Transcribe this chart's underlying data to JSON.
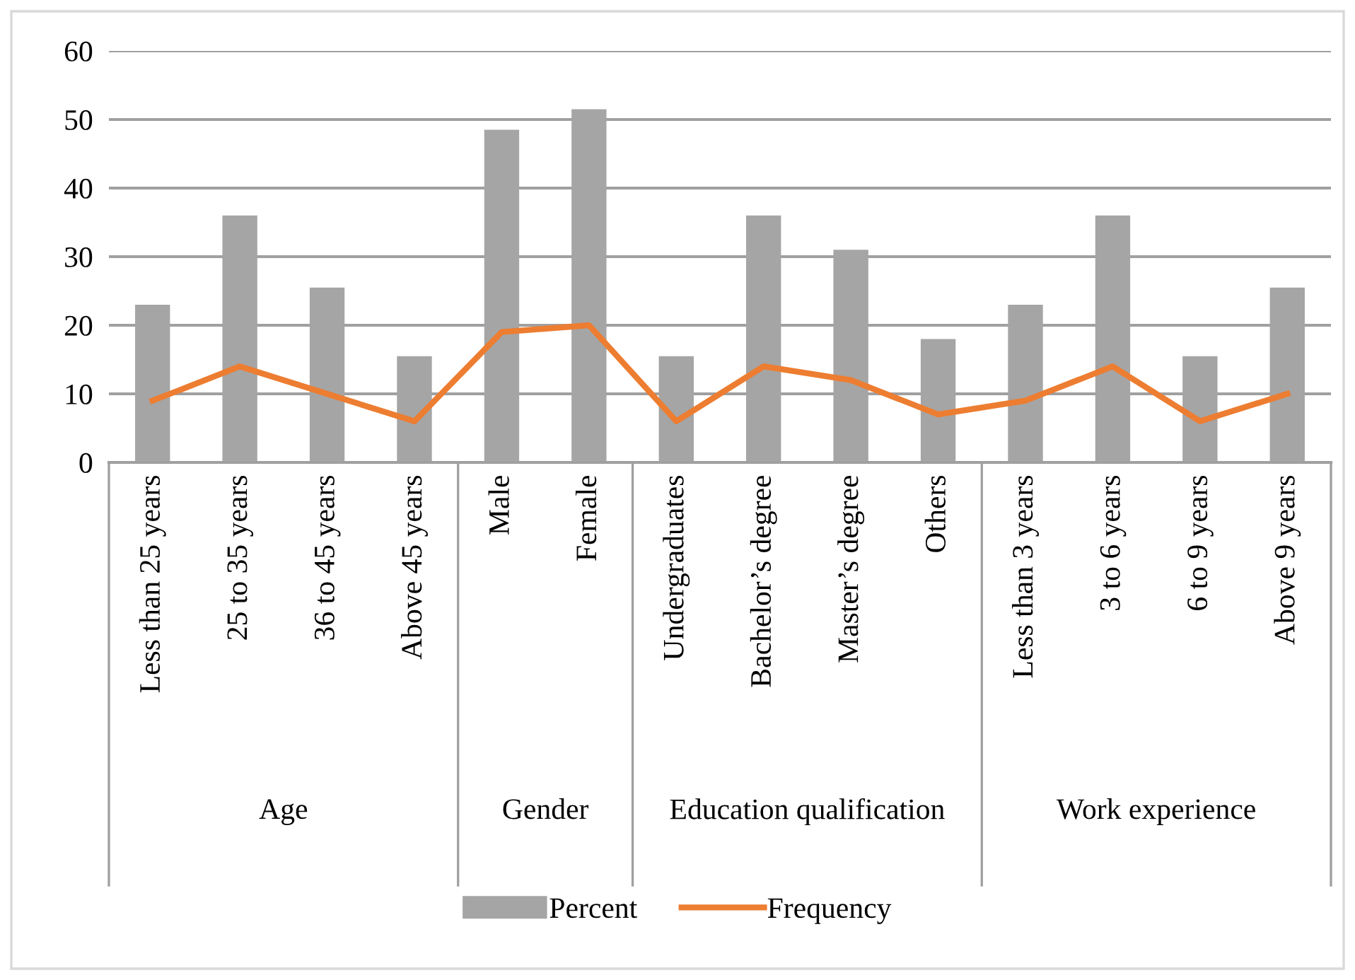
{
  "chart_data": {
    "type": "bar",
    "categories": [
      "Less than 25 years",
      "25 to 35 years",
      "36 to 45 years",
      "Above 45 years",
      "Male",
      "Female",
      "Undergraduates",
      "Bachelor’s degree",
      "Master’s degree",
      "Others",
      "Less than 3 years",
      "3 to 6 years",
      "6 to 9 years",
      "Above 9 years"
    ],
    "series": [
      {
        "name": "Percent",
        "color": "#a5a5a5",
        "values": [
          23,
          36,
          25.5,
          15.5,
          48.5,
          51.5,
          15.5,
          36,
          31,
          18,
          23,
          36,
          15.5,
          25.5
        ]
      },
      {
        "name": "Frequency",
        "type": "line",
        "color": "#ed7d31",
        "values": [
          9,
          14,
          10,
          6,
          19,
          20,
          6,
          14,
          12,
          7,
          9,
          14,
          6,
          10
        ]
      }
    ],
    "ylim": [
      0,
      60
    ],
    "yticks": [
      0,
      10,
      20,
      30,
      40,
      50,
      60
    ],
    "grid": "y",
    "legend": "bottom",
    "marker": "none",
    "line_style": "solid",
    "annotations": [
      "Age",
      "Gender",
      "Education qualification",
      "Work experience"
    ]
  }
}
